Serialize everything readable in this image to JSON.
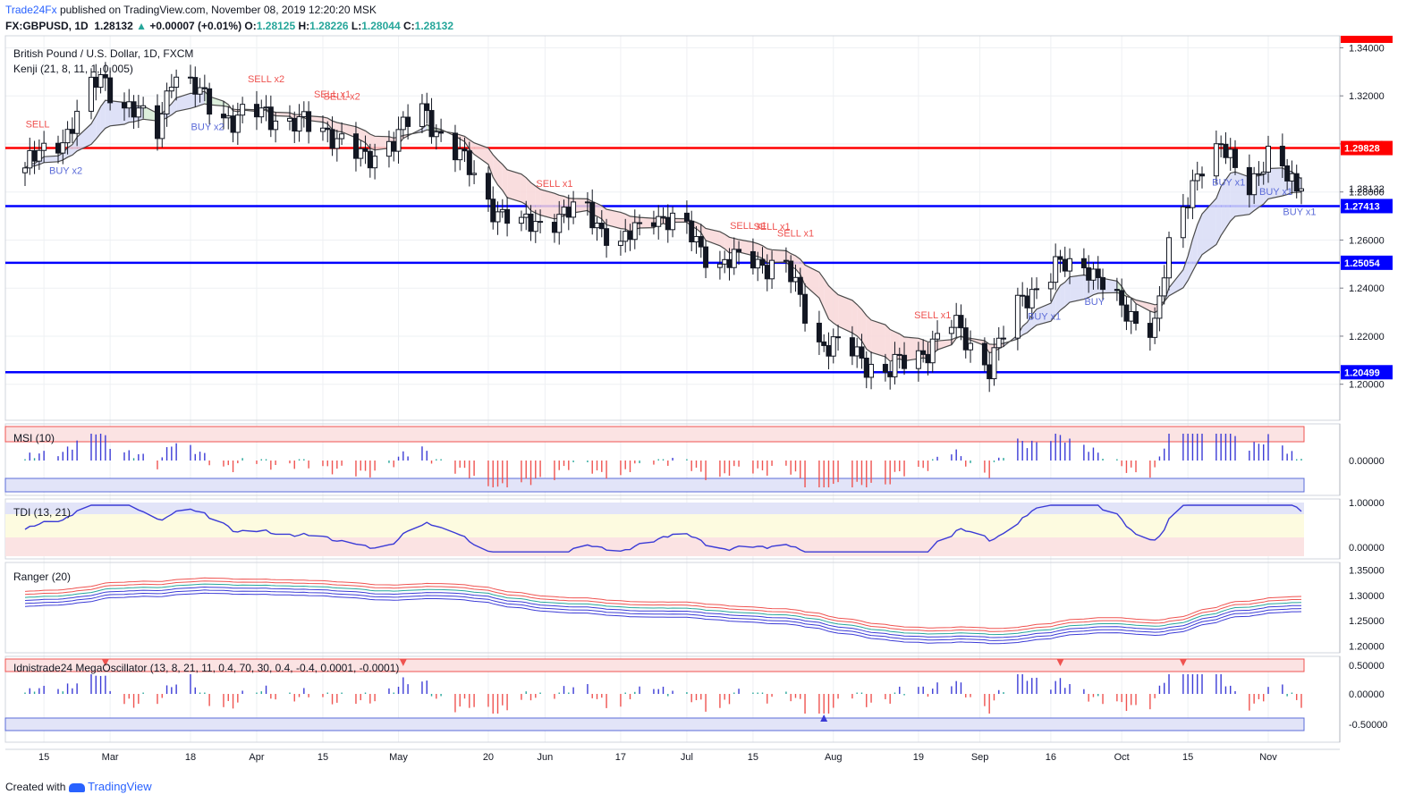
{
  "header": {
    "publisher": "Trade24Fx",
    "published_text": "published on TradingView.com, November 08, 2019 12:20:20 MSK",
    "symbol": "FX:GBPUSD, 1D",
    "last": "1.28132",
    "change": "+0.00007 (+0.01%)",
    "open_label": "O:",
    "open": "1.28125",
    "high_label": "H:",
    "high": "1.28226",
    "low_label": "L:",
    "low": "1.28044",
    "close_label": "C:",
    "close": "1.28132"
  },
  "footer": {
    "created_with": "Created with",
    "brand": "TradingView"
  },
  "colors": {
    "up": "#26a69a",
    "down": "#ef5350",
    "red_line": "#ff0000",
    "blue_line": "#0000ff",
    "brand": "#2962ff"
  },
  "chart_data": [
    {
      "type": "candlestick",
      "pane": "main",
      "title": "British Pound / U.S. Dollar, 1D, FXCM",
      "indicator": "Kenji (21, 8, 11, 1, 0.005)",
      "ylim": [
        1.185,
        1.345
      ],
      "y_ticks": [
        "1.34000",
        "1.32000",
        "1.30000",
        "1.28000",
        "1.26000",
        "1.24000",
        "1.22000",
        "1.20000"
      ],
      "x_ticks": [
        "15",
        "Mar",
        "18",
        "Apr",
        "15",
        "May",
        "20",
        "Jun",
        "17",
        "Jul",
        "15",
        "Aug",
        "19",
        "Sep",
        "16",
        "Oct",
        "15",
        "Nov"
      ],
      "horizontal_levels": [
        {
          "value": 1.29828,
          "label": "1.29828",
          "color": "#ff0000"
        },
        {
          "value": 1.27413,
          "label": "1.27413",
          "color": "#0000ff"
        },
        {
          "value": 1.25054,
          "label": "1.25054",
          "color": "#0000ff"
        },
        {
          "value": 1.20499,
          "label": "1.20499",
          "color": "#0000ff"
        }
      ],
      "last_price": {
        "value": 1.28132,
        "label": "1.28132"
      },
      "close_path": [
        [
          "Feb 11",
          1.29
        ],
        [
          "Feb 20",
          1.305
        ],
        [
          "Feb 27",
          1.328
        ],
        [
          "Mar 5",
          1.315
        ],
        [
          "Mar 11",
          1.305
        ],
        [
          "Mar 14",
          1.33
        ],
        [
          "Mar 20",
          1.32
        ],
        [
          "Mar 27",
          1.31
        ],
        [
          "Apr 3",
          1.313
        ],
        [
          "Apr 10",
          1.308
        ],
        [
          "Apr 17",
          1.305
        ],
        [
          "Apr 24",
          1.292
        ],
        [
          "May 1",
          1.305
        ],
        [
          "May 6",
          1.313
        ],
        [
          "May 13",
          1.298
        ],
        [
          "May 20",
          1.276
        ],
        [
          "May 27",
          1.265
        ],
        [
          "Jun 3",
          1.27
        ],
        [
          "Jun 10",
          1.272
        ],
        [
          "Jun 17",
          1.257
        ],
        [
          "Jun 24",
          1.272
        ],
        [
          "Jul 1",
          1.263
        ],
        [
          "Jul 8",
          1.25
        ],
        [
          "Jul 15",
          1.252
        ],
        [
          "Jul 22",
          1.248
        ],
        [
          "Jul 29",
          1.218
        ],
        [
          "Aug 5",
          1.213
        ],
        [
          "Aug 12",
          1.205
        ],
        [
          "Aug 19",
          1.212
        ],
        [
          "Aug 26",
          1.225
        ],
        [
          "Sep 3",
          1.208
        ],
        [
          "Sep 10",
          1.236
        ],
        [
          "Sep 17",
          1.248
        ],
        [
          "Sep 24",
          1.25
        ],
        [
          "Oct 1",
          1.23
        ],
        [
          "Oct 8",
          1.225
        ],
        [
          "Oct 11",
          1.255
        ],
        [
          "Oct 17",
          1.29
        ],
        [
          "Oct 22",
          1.297
        ],
        [
          "Oct 28",
          1.285
        ],
        [
          "Nov 1",
          1.293
        ],
        [
          "Nov 8",
          1.28132
        ]
      ],
      "signals": [
        {
          "x": "Feb 13",
          "label": "SELL",
          "color": "#ef5350"
        },
        {
          "x": "Feb 18",
          "label": "BUY x2",
          "color": "#5b6bd8"
        },
        {
          "x": "Mar 20",
          "label": "BUY x2",
          "color": "#5b6bd8"
        },
        {
          "x": "Apr 1",
          "label": "SELL x2",
          "color": "#ef5350"
        },
        {
          "x": "Apr 15",
          "label": "SELL x1",
          "color": "#ef5350"
        },
        {
          "x": "Apr 17",
          "label": "SELL x2",
          "color": "#ef5350"
        },
        {
          "x": "Jun 1",
          "label": "SELL x1",
          "color": "#ef5350"
        },
        {
          "x": "Jul 12",
          "label": "SELL x1",
          "color": "#ef5350"
        },
        {
          "x": "Jul 17",
          "label": "SELL x1",
          "color": "#ef5350"
        },
        {
          "x": "Jul 22",
          "label": "SELL x1",
          "color": "#ef5350"
        },
        {
          "x": "Aug 20",
          "label": "SELL x1",
          "color": "#ef5350"
        },
        {
          "x": "Sep 13",
          "label": "BUY x1",
          "color": "#5b6bd8"
        },
        {
          "x": "Sep 25",
          "label": "BUY",
          "color": "#5b6bd8"
        },
        {
          "x": "Oct 22",
          "label": "BUY x1",
          "color": "#5b6bd8"
        },
        {
          "x": "Nov 1",
          "label": "BUY x1",
          "color": "#5b6bd8"
        },
        {
          "x": "Nov 6",
          "label": "BUY x1",
          "color": "#5b6bd8"
        }
      ]
    },
    {
      "type": "bar",
      "pane": "msi",
      "title": "MSI (10)",
      "ylim": [
        -1,
        1
      ],
      "y_ticks": [
        "0.00000"
      ]
    },
    {
      "type": "line",
      "pane": "tdi",
      "title": "TDI (13, 21)",
      "ylim": [
        0,
        1
      ],
      "y_ticks": [
        "1.00000",
        "0.00000"
      ]
    },
    {
      "type": "line",
      "pane": "ranger",
      "title": "Ranger (20)",
      "y_ticks": [
        "1.35000",
        "1.30000",
        "1.25000",
        "1.20000"
      ]
    },
    {
      "type": "bar",
      "pane": "megaosc",
      "title": "Idnistrade24 MegaOscillator (13, 8, 21, 11, 0.4, 70, 30, 0.4, -0.4, 0.0001, -0.0001)",
      "y_ticks": [
        "0.50000",
        "0.00000",
        "-0.50000"
      ]
    }
  ]
}
